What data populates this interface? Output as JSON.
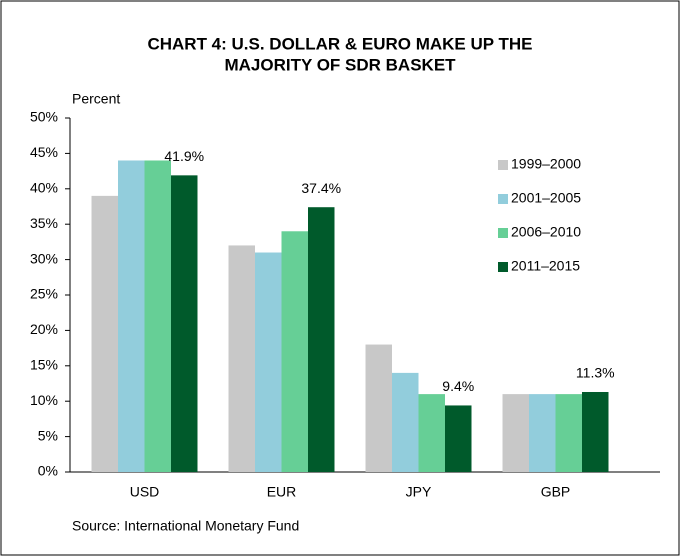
{
  "chart_data": {
    "type": "bar",
    "title": [
      "CHART 4: U.S. DOLLAR & EURO MAKE UP THE",
      "MAJORITY OF SDR BASKET"
    ],
    "y_label": "Percent",
    "source": "Source: International Monetary Fund",
    "categories": [
      "USD",
      "EUR",
      "JPY",
      "GBP"
    ],
    "series": [
      {
        "name": "1999–2000",
        "color": "#c8c8c8",
        "values": [
          39,
          32,
          18,
          11
        ]
      },
      {
        "name": "2001–2005",
        "color": "#92cddc",
        "values": [
          44,
          31,
          14,
          11
        ]
      },
      {
        "name": "2006–2010",
        "color": "#66cf96",
        "values": [
          44,
          34,
          11,
          11
        ]
      },
      {
        "name": "2011–2015",
        "color": "#005a2b",
        "values": [
          41.9,
          37.4,
          9.4,
          11.3
        ],
        "value_labels": [
          "41.9%",
          "37.4%",
          "9.4%",
          "11.3%"
        ]
      }
    ],
    "ylim": [
      0,
      50
    ],
    "yticks": [
      {
        "value": 0,
        "label": "0%"
      },
      {
        "value": 5,
        "label": "5%"
      },
      {
        "value": 10,
        "label": "10%"
      },
      {
        "value": 15,
        "label": "15%"
      },
      {
        "value": 20,
        "label": "20%"
      },
      {
        "value": 25,
        "label": "25%"
      },
      {
        "value": 30,
        "label": "30%"
      },
      {
        "value": 35,
        "label": "35%"
      },
      {
        "value": 40,
        "label": "40%"
      },
      {
        "value": 45,
        "label": "45%"
      },
      {
        "value": 50,
        "label": "50%"
      }
    ],
    "grid": false,
    "legend": "right"
  }
}
